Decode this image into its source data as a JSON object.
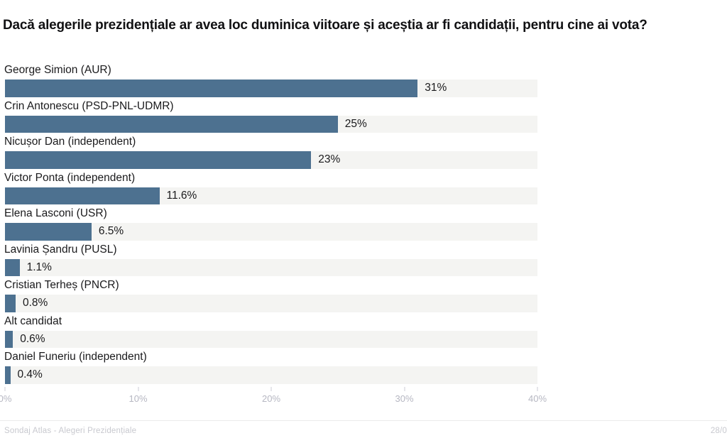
{
  "header": {
    "title": "Dacă alegerile prezidențiale ar avea loc duminica viitoare și aceștia ar fi candidații, pentru cine ai vota?"
  },
  "chart_data": {
    "type": "bar",
    "orientation": "horizontal",
    "title": "Dacă alegerile prezidențiale ar avea loc duminica viitoare și aceștia ar fi candidații, pentru cine ai vota?",
    "categories": [
      "George Simion (AUR)",
      "Crin Antonescu (PSD-PNL-UDMR)",
      "Nicușor Dan (independent)",
      "Victor Ponta (independent)",
      "Elena Lasconi (USR)",
      "Lavinia Șandru (PUSL)",
      "Cristian Terheș (PNCR)",
      "Alt candidat",
      "Daniel Funeriu (independent)"
    ],
    "values": [
      31,
      25,
      23,
      11.6,
      6.5,
      1.1,
      0.8,
      0.6,
      0.4
    ],
    "value_labels": [
      "31%",
      "25%",
      "23%",
      "11.6%",
      "6.5%",
      "1.1%",
      "0.8%",
      "0.6%",
      "0.4%"
    ],
    "xlabel": "",
    "ylabel": "",
    "xlim": [
      0,
      40
    ],
    "x_ticks": [
      "0%",
      "10%",
      "20%",
      "30%",
      "40%"
    ],
    "grid": false,
    "legend": "none",
    "bar_color": "#4d7190",
    "track_color": "#f4f4f2"
  },
  "footer": {
    "source": "Sondaj Atlas - Alegeri Prezidențiale",
    "date": "28/0"
  }
}
